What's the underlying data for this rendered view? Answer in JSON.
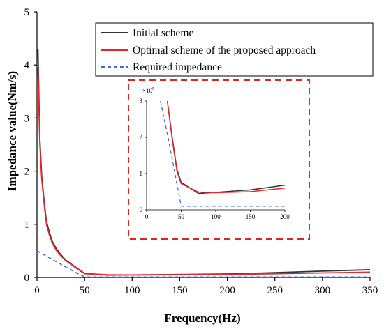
{
  "chart_data": {
    "type": "line",
    "xlabel": "Frequency(Hz)",
    "ylabel": "Impedance value(Nm/s)",
    "xlim": [
      0,
      350
    ],
    "ylim": [
      0,
      5
    ],
    "xticks": [
      "0",
      "50",
      "100",
      "150",
      "200",
      "250",
      "300",
      "350"
    ],
    "yticks": [
      "0",
      "1",
      "2",
      "3",
      "4",
      "5"
    ],
    "grid": false,
    "legend_position": "top-right",
    "colors": {
      "initial": "#333333",
      "optimal": "#e8262a",
      "required": "#4169e1",
      "inset_frame": "#d9262a"
    },
    "series": [
      {
        "name": "Initial scheme",
        "style": "solid",
        "x": [
          1,
          2,
          3,
          5,
          8,
          10,
          13,
          16,
          20,
          25,
          30,
          40,
          50,
          75,
          100,
          150,
          200,
          250,
          300,
          350
        ],
        "y": [
          4.3,
          3.4,
          2.6,
          1.9,
          1.35,
          1.05,
          0.85,
          0.68,
          0.55,
          0.43,
          0.33,
          0.2,
          0.075,
          0.045,
          0.048,
          0.055,
          0.065,
          0.09,
          0.12,
          0.145
        ]
      },
      {
        "name": "Optimal scheme of the proposed approach",
        "style": "solid",
        "x": [
          1,
          2,
          3,
          5,
          8,
          10,
          13,
          16,
          20,
          25,
          30,
          40,
          50,
          75,
          100,
          150,
          200,
          250,
          300,
          350
        ],
        "y": [
          3.95,
          3.2,
          2.5,
          1.85,
          1.3,
          1.0,
          0.8,
          0.65,
          0.52,
          0.41,
          0.32,
          0.19,
          0.07,
          0.05,
          0.048,
          0.05,
          0.058,
          0.07,
          0.085,
          0.1
        ]
      },
      {
        "name": "Required impedance",
        "style": "dashed",
        "x": [
          0,
          10,
          20,
          30,
          40,
          50,
          100,
          150,
          200,
          250,
          300,
          350
        ],
        "y": [
          0.5,
          0.4,
          0.3,
          0.2,
          0.1,
          0.01,
          0.01,
          0.01,
          0.01,
          0.01,
          0.01,
          0.01
        ]
      }
    ],
    "inset": {
      "xlim": [
        0,
        200
      ],
      "ylim": [
        0,
        3
      ],
      "xticks": [
        "0",
        "50",
        "100",
        "150",
        "200"
      ],
      "yticks": [
        "0",
        "1",
        "2",
        "3"
      ],
      "y_multiplier_base": "×10",
      "y_multiplier_exp": "5",
      "series": [
        {
          "name": "Initial scheme",
          "x": [
            30,
            37,
            44,
            50,
            75,
            100,
            150,
            200
          ],
          "y": [
            3.0,
            2.0,
            1.1,
            0.76,
            0.45,
            0.48,
            0.55,
            0.68
          ]
        },
        {
          "name": "Optimal scheme of the proposed approach",
          "x": [
            30,
            37,
            44,
            50,
            75,
            100,
            150,
            200
          ],
          "y": [
            3.0,
            1.95,
            1.05,
            0.72,
            0.49,
            0.47,
            0.5,
            0.6
          ]
        },
        {
          "name": "Required impedance",
          "x": [
            20,
            30,
            40,
            50,
            100,
            150,
            200
          ],
          "y": [
            3.0,
            2.1,
            1.1,
            0.1,
            0.1,
            0.1,
            0.1
          ]
        }
      ]
    }
  }
}
